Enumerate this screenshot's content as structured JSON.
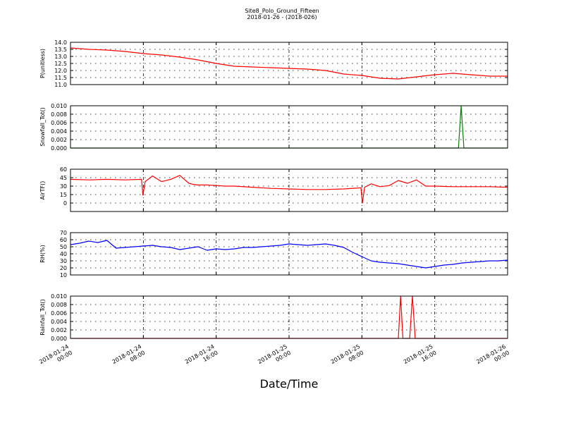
{
  "title": "Site8_Polo_Ground_Fifteen",
  "subtitle": "2018-01-26 - (2018-026)",
  "x_axis": {
    "label": "Date/Time",
    "tick_labels": [
      [
        "2018-01-24",
        "00:00"
      ],
      [
        "2018-01-24",
        "08:00"
      ],
      [
        "2018-01-24",
        "16:00"
      ],
      [
        "2018-01-25",
        "00:00"
      ],
      [
        "2018-01-25",
        "08:00"
      ],
      [
        "2018-01-25",
        "16:00"
      ],
      [
        "2018-01-26",
        "00:00"
      ]
    ]
  },
  "colors": {
    "red": "#ff0000",
    "green": "#008000",
    "blue": "#0000ff",
    "axis": "#000000"
  },
  "chart_data": [
    {
      "type": "line",
      "ylabel": "P(unitless)",
      "ylim": [
        11.0,
        14.0
      ],
      "yticks": [
        "11.0",
        "11.5",
        "12.0",
        "12.5",
        "13.0",
        "13.5",
        "14.0"
      ],
      "x": [
        0,
        2,
        4,
        6,
        8,
        10,
        12,
        14,
        16,
        18,
        20,
        22,
        24,
        26,
        28,
        30,
        32,
        34,
        36,
        38,
        40,
        42,
        44,
        46,
        48
      ],
      "series": [
        {
          "color": "#ff0000",
          "values": [
            13.6,
            13.5,
            13.45,
            13.35,
            13.2,
            13.1,
            12.95,
            12.75,
            12.5,
            12.3,
            12.25,
            12.2,
            12.15,
            12.1,
            12.0,
            11.75,
            11.65,
            11.45,
            11.4,
            11.55,
            11.7,
            11.8,
            11.7,
            11.6,
            11.6
          ]
        }
      ]
    },
    {
      "type": "line",
      "ylabel": "Snowfall_Tot()",
      "ylim": [
        0.0,
        0.01
      ],
      "yticks": [
        "0.000",
        "0.002",
        "0.004",
        "0.006",
        "0.008",
        "0.010"
      ],
      "x": [
        0,
        42.6,
        42.9,
        43.2,
        48
      ],
      "series": [
        {
          "color": "#008000",
          "values": [
            0,
            0,
            0.01,
            0,
            0
          ]
        }
      ]
    },
    {
      "type": "line",
      "ylabel": "AirTF()",
      "ylim": [
        -15,
        60
      ],
      "yticks": [
        "0",
        "15",
        "30",
        "45",
        "60"
      ],
      "x": [
        0,
        2,
        4,
        6,
        7.8,
        7.95,
        8.2,
        9,
        10,
        11,
        12,
        13,
        13.5,
        14,
        15,
        16,
        17,
        18,
        20,
        22,
        24,
        26,
        28,
        30,
        31.9,
        32.05,
        32.3,
        33,
        34,
        35,
        36,
        37,
        38,
        39,
        40,
        42,
        44,
        46,
        48
      ],
      "series": [
        {
          "color": "#ff0000",
          "values": [
            42,
            41,
            42,
            41,
            42,
            14,
            38,
            48,
            38,
            42,
            49,
            35,
            33,
            32,
            32,
            31,
            30,
            30,
            28,
            26,
            25,
            24,
            24,
            25,
            27,
            0,
            28,
            34,
            29,
            31,
            40,
            35,
            41,
            30,
            30,
            29,
            29,
            29,
            28
          ]
        }
      ]
    },
    {
      "type": "line",
      "ylabel": "RH(%)",
      "ylim": [
        10,
        70
      ],
      "yticks": [
        "10",
        "20",
        "30",
        "40",
        "50",
        "60",
        "70"
      ],
      "x": [
        0,
        1,
        2,
        3,
        4,
        5,
        6,
        7,
        8,
        9,
        10,
        11,
        12,
        13,
        14,
        15,
        16,
        17,
        18,
        19,
        20,
        21,
        22,
        23,
        24,
        25,
        26,
        27,
        28,
        29,
        30,
        31,
        32,
        33,
        34,
        35,
        36,
        37,
        38,
        39,
        40,
        41,
        42,
        43,
        44,
        45,
        46,
        47,
        48
      ],
      "series": [
        {
          "color": "#0000ff",
          "values": [
            53,
            55,
            58,
            56,
            59,
            48,
            49,
            50,
            51,
            52,
            50,
            49,
            46,
            48,
            50,
            45,
            47,
            46,
            47,
            49,
            49,
            50,
            51,
            52,
            54,
            53,
            52,
            53,
            54,
            52,
            49,
            42,
            36,
            30,
            28,
            27,
            26,
            24,
            22,
            20,
            22,
            24,
            25,
            27,
            28,
            29,
            30,
            30,
            31
          ]
        }
      ]
    },
    {
      "type": "line",
      "ylabel": "Rainfall_Tot()",
      "ylim": [
        0.0,
        0.01
      ],
      "yticks": [
        "0.000",
        "0.002",
        "0.004",
        "0.006",
        "0.008",
        "0.010"
      ],
      "x": [
        0,
        36.0,
        36.25,
        36.5,
        37.25,
        37.55,
        37.85,
        48
      ],
      "series": [
        {
          "color": "#ff0000",
          "values": [
            0,
            0,
            0.01,
            0,
            0,
            0.01,
            0,
            0
          ]
        }
      ]
    }
  ]
}
